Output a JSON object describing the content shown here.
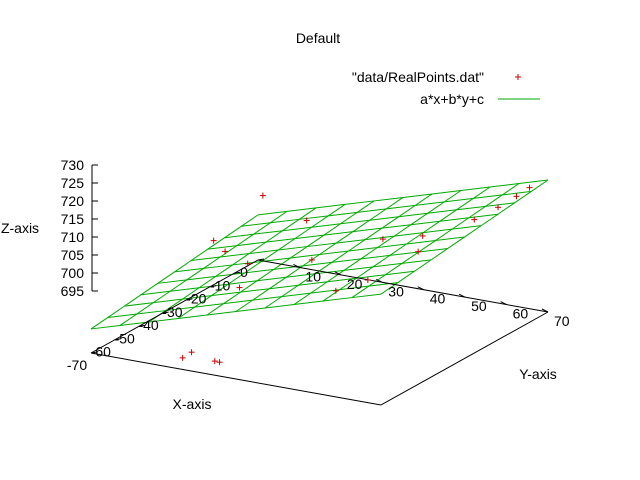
{
  "chart_data": {
    "type": "scatter",
    "title": "Default",
    "xlabel": "X-axis",
    "ylabel": "Y-axis",
    "zlabel": "Z-axis",
    "xlim": [
      -70,
      0
    ],
    "ylim": [
      0,
      70
    ],
    "zlim": [
      695,
      730
    ],
    "x_ticks": [
      -70,
      -60,
      -50,
      -40,
      -30,
      -20,
      -10,
      0
    ],
    "y_ticks": [
      10,
      20,
      30,
      40,
      50,
      60,
      70
    ],
    "z_ticks": [
      695,
      700,
      705,
      710,
      715,
      720,
      725,
      730
    ],
    "legend_position": "top-right",
    "colors": {
      "points": "#cc0000",
      "surface": "#00aa00",
      "axes": "#000000"
    },
    "series": [
      {
        "name": "\"data/RealPoints.dat\"",
        "style": "points",
        "points": [
          {
            "x": -57,
            "y": 34,
            "z": 739
          },
          {
            "x": -56,
            "y": 44,
            "z": 734
          },
          {
            "x": -62,
            "y": 25,
            "z": 727
          },
          {
            "x": -52,
            "y": 22,
            "z": 720
          },
          {
            "x": -46,
            "y": 24,
            "z": 715
          },
          {
            "x": -39,
            "y": 18,
            "z": 705
          },
          {
            "x": -42,
            "y": 6,
            "z": 685
          },
          {
            "x": -40,
            "y": 7,
            "z": 686
          },
          {
            "x": -32,
            "y": 8,
            "z": 681
          },
          {
            "x": -30,
            "y": 8,
            "z": 680
          },
          {
            "x": -33,
            "y": 32,
            "z": 713
          },
          {
            "x": -31,
            "y": 48,
            "z": 721
          },
          {
            "x": -23,
            "y": 53,
            "z": 720
          },
          {
            "x": -17,
            "y": 62,
            "z": 724
          },
          {
            "x": -14,
            "y": 66,
            "z": 727
          },
          {
            "x": -8,
            "y": 67,
            "z": 728
          },
          {
            "x": -6,
            "y": 69,
            "z": 730
          },
          {
            "x": -11,
            "y": 45,
            "z": 710
          },
          {
            "x": -13,
            "y": 34,
            "z": 701
          },
          {
            "x": -16,
            "y": 28,
            "z": 698
          }
        ]
      },
      {
        "name": "a*x+b*y+c",
        "style": "lines",
        "plane": {
          "a": 0.08,
          "b": 0.33,
          "c": 707
        }
      }
    ]
  }
}
